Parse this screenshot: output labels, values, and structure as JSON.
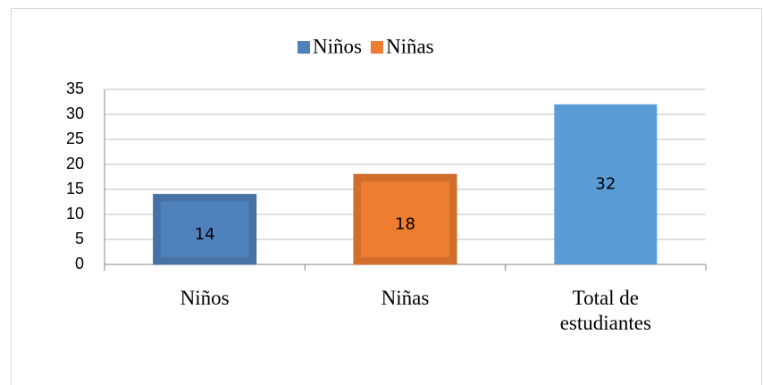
{
  "chart_data": {
    "type": "bar",
    "categories": [
      "Niños",
      "Niñas",
      "Total de estudiantes"
    ],
    "values": [
      14,
      18,
      32
    ],
    "colors": [
      "#4f81bd",
      "#ed7d31",
      "#5b9bd5"
    ],
    "legend": [
      {
        "name": "Niños",
        "color": "#4f81bd"
      },
      {
        "name": "Niñas",
        "color": "#ed7d31"
      }
    ],
    "ylim": [
      0,
      35
    ],
    "yticks": [
      0,
      5,
      10,
      15,
      20,
      25,
      30,
      35
    ],
    "grid": true
  }
}
